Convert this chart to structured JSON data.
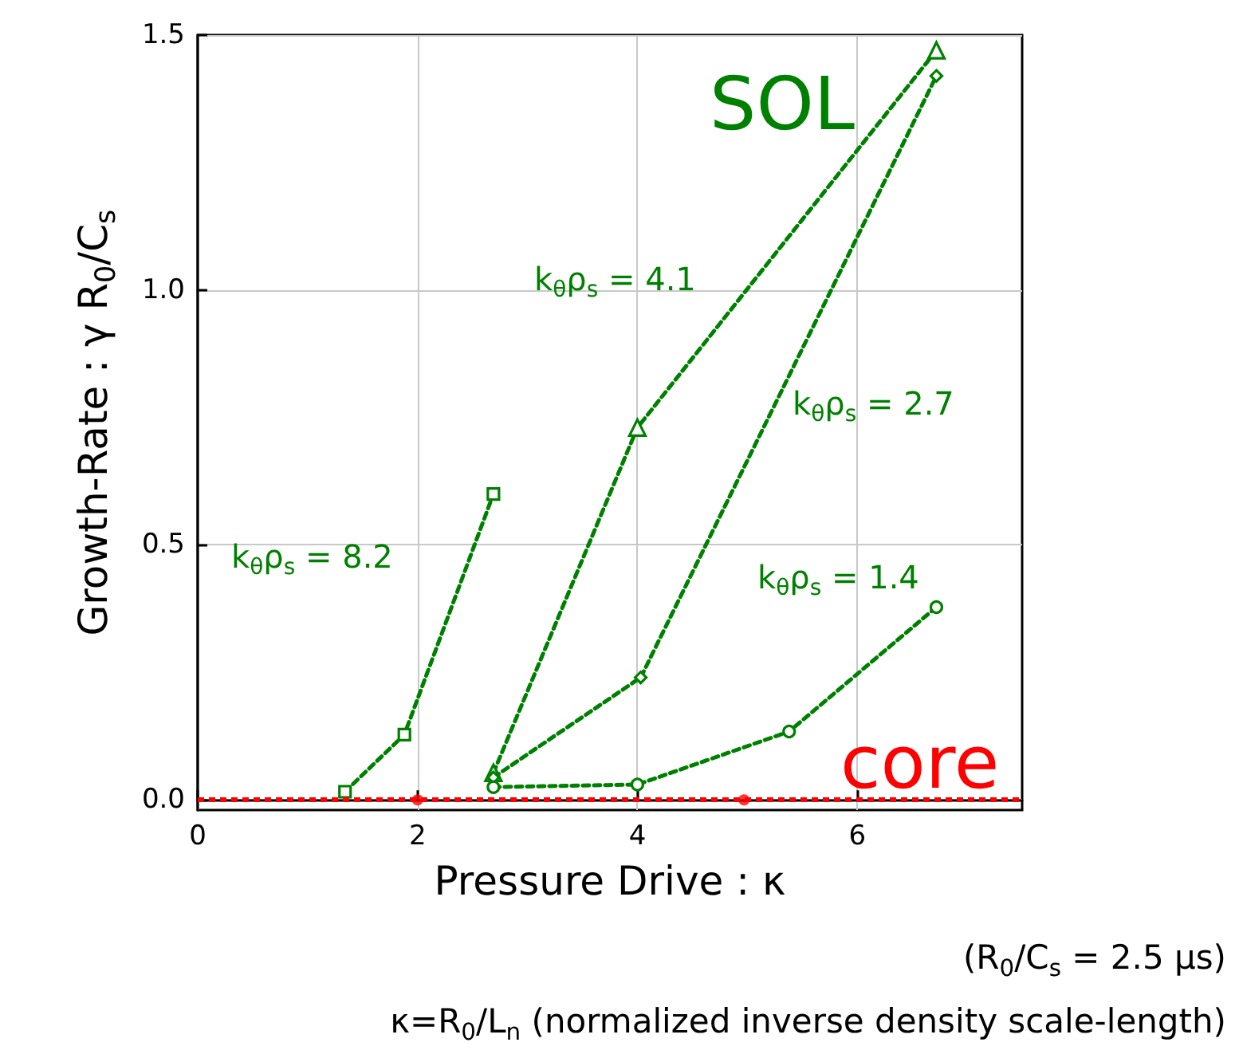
{
  "chart_data": {
    "type": "line",
    "xlabel": "Pressure Drive : κ",
    "ylabel": "Growth-Rate : γ R$_{0}$/C$_{s}$",
    "xlim": [
      0,
      7.5
    ],
    "xticks": [
      0,
      2,
      4,
      6
    ],
    "ylim": [
      -0.02,
      1.5
    ],
    "yticks": [
      {
        "value": 0,
        "label": "0.0"
      },
      0.5,
      {
        "value": 1,
        "label": "1.0"
      },
      1.5
    ],
    "grid": true,
    "line_style": "dashed",
    "series": [
      {
        "name": "k$_{θ}$ρ$_{s}$ = 8.2",
        "color": "#008000",
        "marker": "square",
        "x": [
          1.34,
          1.88,
          2.69
        ],
        "values": [
          0.016,
          0.128,
          0.6
        ]
      },
      {
        "name": "k$_{θ}$ρ$_{s}$ = 4.1",
        "color": "#008000",
        "marker": "triangle",
        "x": [
          2.69,
          4.0,
          6.72
        ],
        "values": [
          0.053,
          0.73,
          1.47
        ]
      },
      {
        "name": "k$_{θ}$ρ$_{s}$ = 2.7",
        "color": "#008000",
        "marker": "diamond",
        "x": [
          2.69,
          4.03,
          6.72
        ],
        "values": [
          0.044,
          0.24,
          1.42
        ]
      },
      {
        "name": "k$_{θ}$ρ$_{s}$ = 1.4",
        "color": "#008000",
        "marker": "circle",
        "x": [
          2.69,
          4.0,
          5.38,
          6.72
        ],
        "values": [
          0.025,
          0.03,
          0.134,
          0.378
        ]
      },
      {
        "name": "core",
        "type": "scatter",
        "color": "#ff0000",
        "marker": "circle",
        "x": [
          2,
          4.97
        ],
        "values": [
          0,
          0
        ]
      }
    ],
    "ref_lines": [
      {
        "axis": "y",
        "value": 0,
        "color": "#ff0000",
        "line_style": "dashed"
      }
    ],
    "annotations": [
      "SOL",
      "(R$_{0}$/C$_{s}$ = 2.5 μs)",
      "κ=R$_{0}$/L$_{n}$ (normalized inverse density scale-length)"
    ]
  }
}
